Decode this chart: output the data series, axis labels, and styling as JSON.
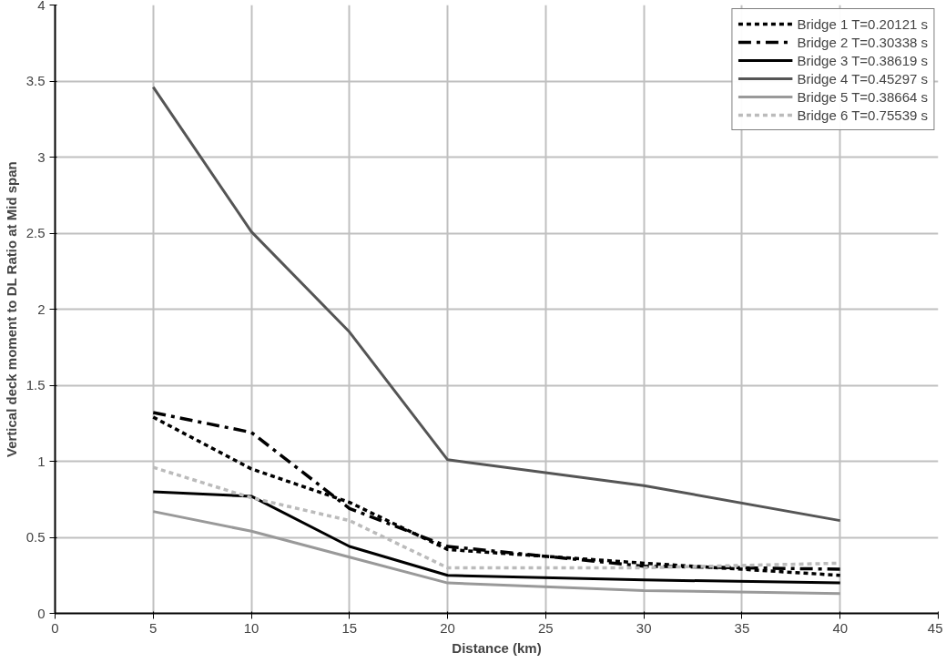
{
  "chart_data": {
    "type": "line",
    "xlabel": "Distance (km)",
    "ylabel": "Vertical deck moment to DL Ratio at Mid span",
    "x": [
      5,
      10,
      15,
      20,
      30,
      40
    ],
    "series": [
      {
        "name": "Bridge 1 T=0.20121 s",
        "color": "#000000",
        "line_style": "dotted",
        "values": [
          1.29,
          0.95,
          0.73,
          0.42,
          0.33,
          0.25
        ]
      },
      {
        "name": "Bridge 2 T=0.30338 s",
        "color": "#000000",
        "line_style": "dashed",
        "values": [
          1.32,
          1.19,
          0.69,
          0.44,
          0.31,
          0.29
        ]
      },
      {
        "name": "Bridge 3 T=0.38619 s",
        "color": "#000000",
        "line_style": "solid",
        "values": [
          0.8,
          0.77,
          0.44,
          0.25,
          0.22,
          0.2
        ]
      },
      {
        "name": "Bridge 4 T=0.45297 s",
        "color": "#555555",
        "line_style": "solid",
        "values": [
          3.46,
          2.51,
          1.85,
          1.01,
          0.84,
          0.61
        ]
      },
      {
        "name": "Bridge 5 T=0.38664 s",
        "color": "#999999",
        "line_style": "solid",
        "values": [
          0.67,
          0.54,
          0.37,
          0.2,
          0.15,
          0.13
        ]
      },
      {
        "name": "Bridge 6 T=0.75539 s",
        "color": "#bbbbbb",
        "line_style": "dotted",
        "values": [
          0.96,
          0.76,
          0.61,
          0.3,
          0.3,
          0.33
        ]
      }
    ],
    "xlim": [
      0,
      45
    ],
    "xticks": [
      0,
      5,
      10,
      15,
      20,
      25,
      30,
      35,
      40,
      45
    ],
    "ylim": [
      0,
      4
    ],
    "yticks": [
      0,
      0.5,
      1,
      1.5,
      2,
      2.5,
      3,
      3.5,
      4
    ],
    "grid": true,
    "legend": "top right",
    "marker": "none"
  }
}
